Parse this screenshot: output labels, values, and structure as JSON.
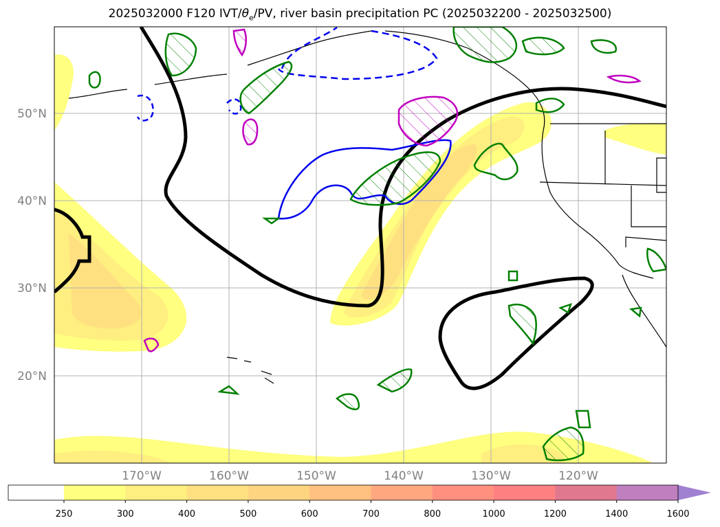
{
  "title": {
    "prefix": "2025032000 F120 IVT/",
    "theta": "θ",
    "theta_sub": "e",
    "suffix": "/PV, river basin precipitation PC (2025032200 - 2025032500)"
  },
  "map": {
    "lon_range": [
      -180,
      -110
    ],
    "lat_range": [
      10,
      60
    ],
    "lat_ticks": [
      {
        "value": 50,
        "label": "50°N"
      },
      {
        "value": 40,
        "label": "40°N"
      },
      {
        "value": 30,
        "label": "30°N"
      },
      {
        "value": 20,
        "label": "20°N"
      }
    ],
    "lon_ticks": [
      {
        "value": -170,
        "label": "170°W"
      },
      {
        "value": -160,
        "label": "160°W"
      },
      {
        "value": -150,
        "label": "150°W"
      },
      {
        "value": -140,
        "label": "140°W"
      },
      {
        "value": -130,
        "label": "130°W"
      },
      {
        "value": -120,
        "label": "120°W"
      }
    ],
    "grid": true,
    "colors": {
      "theta_e_contour": "#000000",
      "pv_positive": "#0000ee",
      "precip_green": "#008000",
      "precip_magenta": "#c000c0",
      "coastline": "#000000"
    }
  },
  "colorbar": {
    "levels": [
      "250",
      "300",
      "400",
      "500",
      "600",
      "700",
      "800",
      "1000",
      "1200",
      "1400",
      "1600"
    ],
    "colors": [
      "#ffff80",
      "#ffee80",
      "#ffe080",
      "#ffd480",
      "#ffc080",
      "#ffa880",
      "#ff9080",
      "#ff8080",
      "#e07890",
      "#c080c0",
      "#a080d0"
    ],
    "extend": "max"
  }
}
